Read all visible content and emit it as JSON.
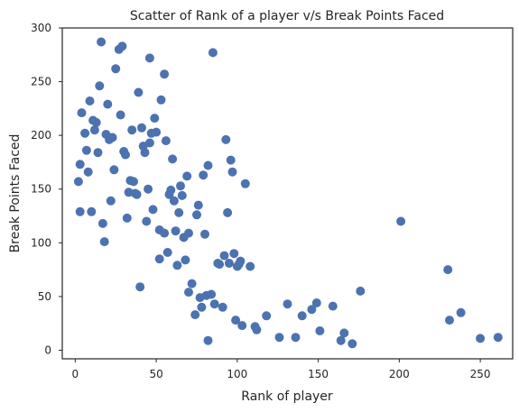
{
  "chart_data": {
    "type": "scatter",
    "title": "Scatter of Rank of a player v/s Break Points Faced",
    "xlabel": "Rank of player",
    "ylabel": "Break Points Faced",
    "xlim": [
      -8,
      270
    ],
    "ylim": [
      -8,
      300
    ],
    "xticks": [
      0,
      50,
      100,
      150,
      200,
      250
    ],
    "yticks": [
      0,
      50,
      100,
      150,
      200,
      250,
      300
    ],
    "grid": false,
    "colors": {
      "points": "#4c72b0",
      "frame": "#262626"
    },
    "points": [
      [
        2,
        157
      ],
      [
        3,
        129
      ],
      [
        3,
        173
      ],
      [
        4,
        221
      ],
      [
        6,
        202
      ],
      [
        7,
        186
      ],
      [
        8,
        166
      ],
      [
        9,
        232
      ],
      [
        10,
        129
      ],
      [
        11,
        214
      ],
      [
        12,
        205
      ],
      [
        13,
        212
      ],
      [
        14,
        184
      ],
      [
        15,
        246
      ],
      [
        16,
        287
      ],
      [
        17,
        118
      ],
      [
        18,
        101
      ],
      [
        19,
        201
      ],
      [
        20,
        229
      ],
      [
        21,
        196
      ],
      [
        22,
        139
      ],
      [
        23,
        198
      ],
      [
        24,
        168
      ],
      [
        25,
        262
      ],
      [
        27,
        280
      ],
      [
        28,
        219
      ],
      [
        29,
        283
      ],
      [
        30,
        185
      ],
      [
        31,
        182
      ],
      [
        32,
        123
      ],
      [
        33,
        147
      ],
      [
        34,
        158
      ],
      [
        35,
        205
      ],
      [
        36,
        157
      ],
      [
        37,
        146
      ],
      [
        38,
        145
      ],
      [
        39,
        240
      ],
      [
        40,
        59
      ],
      [
        41,
        207
      ],
      [
        42,
        190
      ],
      [
        43,
        184
      ],
      [
        44,
        120
      ],
      [
        45,
        150
      ],
      [
        46,
        193
      ],
      [
        46,
        272
      ],
      [
        47,
        202
      ],
      [
        48,
        131
      ],
      [
        49,
        216
      ],
      [
        50,
        203
      ],
      [
        52,
        112
      ],
      [
        52,
        85
      ],
      [
        53,
        233
      ],
      [
        55,
        109
      ],
      [
        55,
        257
      ],
      [
        56,
        195
      ],
      [
        57,
        91
      ],
      [
        58,
        145
      ],
      [
        59,
        149
      ],
      [
        60,
        178
      ],
      [
        61,
        139
      ],
      [
        62,
        111
      ],
      [
        63,
        79
      ],
      [
        64,
        128
      ],
      [
        65,
        153
      ],
      [
        66,
        144
      ],
      [
        67,
        105
      ],
      [
        68,
        84
      ],
      [
        69,
        162
      ],
      [
        70,
        109
      ],
      [
        70,
        54
      ],
      [
        72,
        62
      ],
      [
        74,
        33
      ],
      [
        75,
        126
      ],
      [
        76,
        135
      ],
      [
        77,
        49
      ],
      [
        78,
        40
      ],
      [
        79,
        163
      ],
      [
        80,
        108
      ],
      [
        81,
        51
      ],
      [
        82,
        172
      ],
      [
        82,
        9
      ],
      [
        84,
        52
      ],
      [
        85,
        277
      ],
      [
        86,
        43
      ],
      [
        88,
        81
      ],
      [
        89,
        80
      ],
      [
        91,
        40
      ],
      [
        92,
        88
      ],
      [
        93,
        196
      ],
      [
        94,
        128
      ],
      [
        95,
        81
      ],
      [
        96,
        177
      ],
      [
        97,
        166
      ],
      [
        98,
        90
      ],
      [
        99,
        28
      ],
      [
        100,
        78
      ],
      [
        101,
        80
      ],
      [
        102,
        83
      ],
      [
        103,
        23
      ],
      [
        105,
        155
      ],
      [
        108,
        78
      ],
      [
        111,
        22
      ],
      [
        112,
        19
      ],
      [
        118,
        32
      ],
      [
        126,
        12
      ],
      [
        131,
        43
      ],
      [
        136,
        12
      ],
      [
        140,
        32
      ],
      [
        146,
        38
      ],
      [
        149,
        44
      ],
      [
        151,
        18
      ],
      [
        159,
        41
      ],
      [
        164,
        9
      ],
      [
        166,
        16
      ],
      [
        171,
        6
      ],
      [
        176,
        55
      ],
      [
        201,
        120
      ],
      [
        230,
        75
      ],
      [
        231,
        28
      ],
      [
        238,
        35
      ],
      [
        250,
        11
      ],
      [
        261,
        12
      ]
    ]
  }
}
